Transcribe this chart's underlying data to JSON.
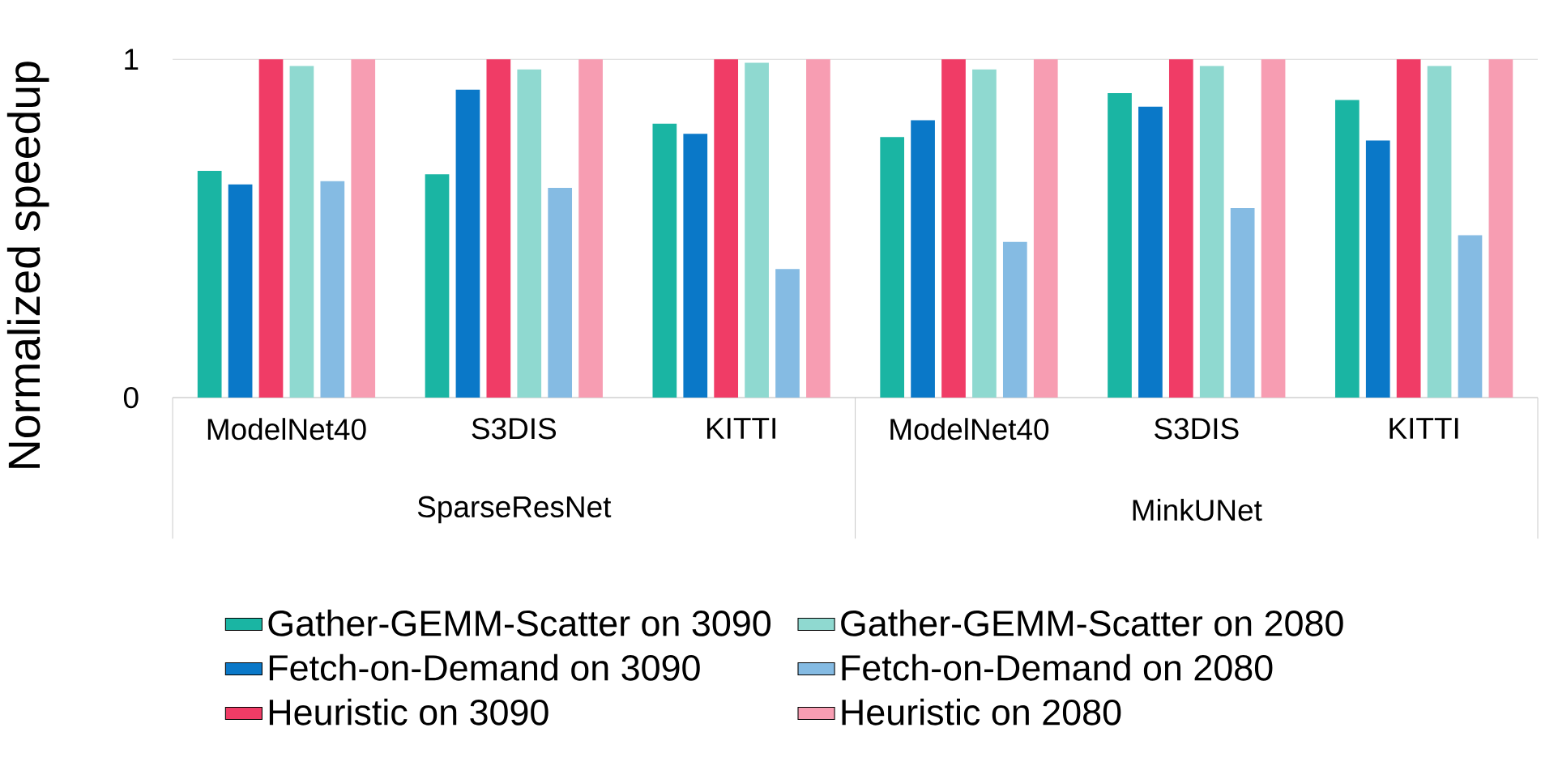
{
  "chart_data": {
    "type": "bar",
    "ylabel": "Normalized speedup",
    "categories": [
      "ModelNet40",
      "S3DIS",
      "KITTI",
      "ModelNet40",
      "S3DIS",
      "KITTI"
    ],
    "annotations": [
      "SparseResNet",
      "MinkUNet"
    ],
    "series": [
      {
        "name": "Gather-GEMM-Scatter on 3090",
        "color": "#1ab5a3",
        "values": [
          0.67,
          0.66,
          0.81,
          0.77,
          0.9,
          0.88
        ]
      },
      {
        "name": "Fetch-on-Demand on 3090",
        "color": "#0a78c8",
        "values": [
          0.63,
          0.91,
          0.78,
          0.82,
          0.86,
          0.76
        ]
      },
      {
        "name": "Heuristic on 3090",
        "color": "#f03c66",
        "values": [
          1,
          1,
          1,
          1,
          1,
          1
        ]
      },
      {
        "name": "Gather-GEMM-Scatter on 2080",
        "color": "#8fd9d0",
        "values": [
          0.98,
          0.97,
          0.99,
          0.97,
          0.98,
          0.98
        ]
      },
      {
        "name": "Fetch-on-Demand on 2080",
        "color": "#85bbe3",
        "values": [
          0.64,
          0.62,
          0.38,
          0.46,
          0.56,
          0.48
        ]
      },
      {
        "name": "Heuristic on 2080",
        "color": "#f79db2",
        "values": [
          1,
          1,
          1,
          1,
          1,
          1
        ]
      }
    ],
    "ylim": [
      0,
      1
    ],
    "yticks": [
      0,
      1
    ],
    "grid": "y",
    "legend": "bottom"
  }
}
